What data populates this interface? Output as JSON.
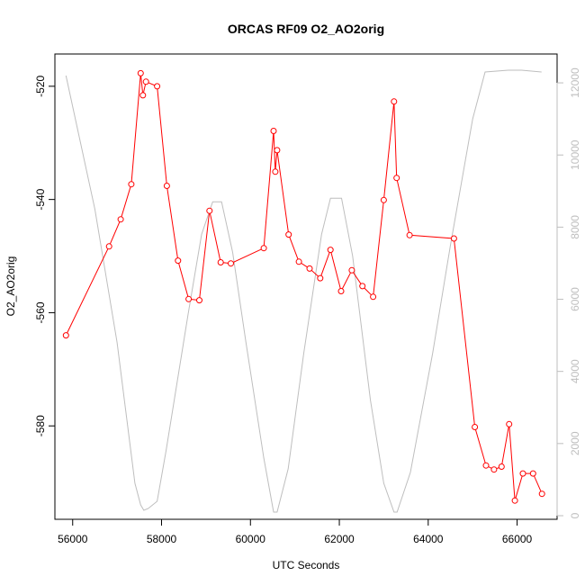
{
  "chart_data": {
    "type": "line",
    "title": "ORCAS RF09 O2_AO2orig",
    "xlabel": "UTC Seconds",
    "ylabel": "O2_AO2orig",
    "xlim": [
      55600,
      66900
    ],
    "ylim": [
      -596.5,
      -514.3
    ],
    "y2lim": [
      -100,
      12800
    ],
    "grid": false,
    "legend": "none",
    "x_ticks": [
      56000,
      58000,
      60000,
      62000,
      64000,
      66000
    ],
    "x_tick_labels": [
      "56000",
      "58000",
      "60000",
      "62000",
      "64000",
      "66000"
    ],
    "y_ticks": [
      -520,
      -540,
      -560,
      -580
    ],
    "y_tick_labels": [
      "-520",
      "-540",
      "-560",
      "-580"
    ],
    "y2_ticks": [
      0,
      2000,
      4000,
      6000,
      8000,
      10000,
      12000
    ],
    "y2_tick_labels": [
      "0",
      "2000",
      "4000",
      "6000",
      "8000",
      "10000",
      "12000"
    ],
    "series": [
      {
        "axis": "left",
        "color": "#ff0000",
        "marker": "open-circle",
        "x": [
          55850,
          56820,
          57080,
          57320,
          57530,
          57580,
          57650,
          57900,
          58120,
          58370,
          58610,
          58850,
          59080,
          59330,
          59560,
          60300,
          60520,
          60560,
          60600,
          60860,
          61090,
          61330,
          61570,
          61800,
          62040,
          62280,
          62520,
          62760,
          63000,
          63230,
          63290,
          63580,
          64580,
          65050,
          65300,
          65480,
          65650,
          65820,
          65950,
          66130,
          66360,
          66560
        ],
        "y": [
          -564.0,
          -548.3,
          -543.5,
          -537.3,
          -517.7,
          -521.6,
          -519.2,
          -520.0,
          -537.6,
          -550.8,
          -557.6,
          -557.8,
          -542.0,
          -551.1,
          -551.3,
          -548.6,
          -527.9,
          -535.1,
          -531.3,
          -546.2,
          -551.0,
          -552.2,
          -553.9,
          -548.9,
          -556.2,
          -552.5,
          -555.3,
          -557.2,
          -540.1,
          -522.7,
          -536.2,
          -546.3,
          -546.9,
          -580.2,
          -587.0,
          -587.7,
          -587.2,
          -579.7,
          -593.2,
          -588.4,
          -588.4,
          -592.0
        ]
      },
      {
        "axis": "right",
        "color": "#bebebe",
        "marker": "none",
        "x": [
          55850,
          56500,
          57000,
          57400,
          57530,
          57600,
          57700,
          57900,
          58100,
          58600,
          58900,
          59150,
          59350,
          59600,
          59900,
          60300,
          60520,
          60600,
          60850,
          61200,
          61600,
          61800,
          62050,
          62300,
          62700,
          63000,
          63230,
          63300,
          63600,
          64100,
          64500,
          65000,
          65280,
          65800,
          66100,
          66550
        ],
        "y": [
          12200,
          8500,
          4800,
          900,
          300,
          150,
          200,
          400,
          1800,
          5600,
          7800,
          8700,
          8700,
          7300,
          4800,
          1600,
          100,
          100,
          1300,
          4500,
          7800,
          8800,
          8800,
          7200,
          3200,
          900,
          100,
          100,
          1200,
          4500,
          7500,
          11000,
          12300,
          12350,
          12350,
          12300
        ]
      }
    ]
  }
}
